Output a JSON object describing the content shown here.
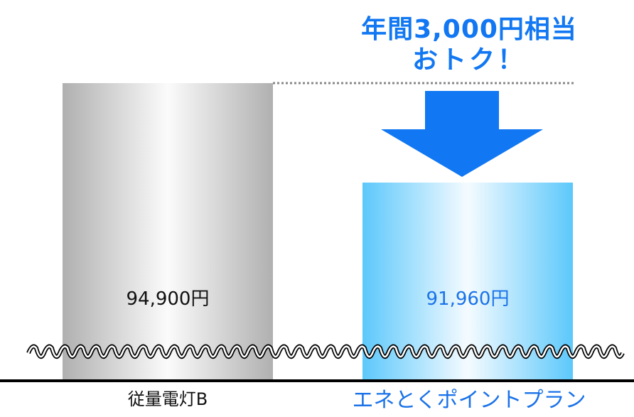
{
  "chart_data": {
    "type": "bar",
    "categories": [
      "従量電灯B",
      "エネとくポイントプラン"
    ],
    "values": [
      94900,
      91960
    ],
    "value_labels": [
      "94,900円",
      "91,960円"
    ],
    "axis_break": true,
    "colors": {
      "bar_1": "#b8b8b8",
      "bar_2": "#66ccff",
      "accent": "#1177f2",
      "label_1": "#111111",
      "label_2": "#1a72e8"
    }
  },
  "callout": {
    "line1": "年間3,000円相当",
    "line2": "おトク！",
    "icon": "down-arrow-icon"
  }
}
